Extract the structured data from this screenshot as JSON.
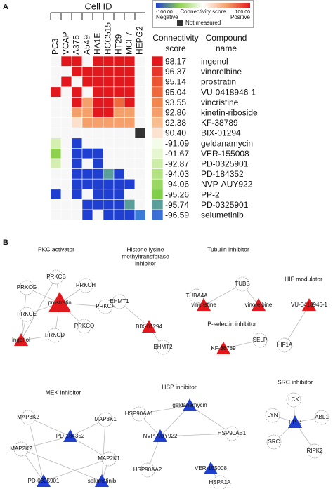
{
  "panel_a": {
    "label": "A",
    "cell_id_title": "Cell ID",
    "cell_lines": [
      "PC3",
      "VCAP",
      "A375",
      "A549",
      "HA1E",
      "HCC515",
      "HT29",
      "MCF7",
      "HEPG2"
    ],
    "legend": {
      "min": "-100.00",
      "title": "Connectivity score",
      "max": "100.00",
      "negative": "Negative",
      "positive": "Positive",
      "not_measured": "Not measured"
    },
    "score_header": [
      "Connectivity",
      "score"
    ],
    "name_header": [
      "Compound",
      "name"
    ],
    "rows": [
      {
        "score": "98.17",
        "name": "ingenol",
        "score_color": "#e3181d",
        "cells": [
          "#f7f7f7",
          "#e3181d",
          "#e3181d",
          "#f7f7f7",
          "#e3181d",
          "#e3181d",
          "#e3181d",
          "#e3181d",
          "#f7f7f7"
        ]
      },
      {
        "score": "96.37",
        "name": "vinorelbine",
        "score_color": "#e8372a",
        "cells": [
          "#f7f7f7",
          "#f7f7f7",
          "#e3181d",
          "#e3181d",
          "#e3181d",
          "#e3181d",
          "#e3181d",
          "#e3181d",
          "#f7f7f7"
        ]
      },
      {
        "score": "95.14",
        "name": "prostratin",
        "score_color": "#ec5532",
        "cells": [
          "#f7f7f7",
          "#e3181d",
          "#f7f7f7",
          "#e3181d",
          "#e3181d",
          "#e3181d",
          "#e3181d",
          "#e3181d",
          "#f7f7f7"
        ]
      },
      {
        "score": "95.04",
        "name": "VU-0418946-1",
        "score_color": "#ee6a3c",
        "cells": [
          "#e3181d",
          "#f7f7f7",
          "#e3181d",
          "#f7f7f7",
          "#e3181d",
          "#e3181d",
          "#e3181d",
          "#e3181d",
          "#f7f7f7"
        ]
      },
      {
        "score": "93.55",
        "name": "vincristine",
        "score_color": "#f2874e",
        "cells": [
          "#f7f7f7",
          "#f7f7f7",
          "#e3181d",
          "#f5a06a",
          "#e3181d",
          "#e3181d",
          "#ee6a3c",
          "#e3181d",
          "#f7f7f7"
        ]
      },
      {
        "score": "92.86",
        "name": "kinetin-riboside",
        "score_color": "#f5a06a",
        "cells": [
          "#f7f7f7",
          "#f7f7f7",
          "#f5a06a",
          "#f5a06a",
          "#e3181d",
          "#e3181d",
          "#f5a06a",
          "#f5a06a",
          "#f7f7f7"
        ]
      },
      {
        "score": "92.38",
        "name": "KF-38789",
        "score_color": "#f8bd8e",
        "cells": [
          "#f7f7f7",
          "#f7f7f7",
          "#fbe0cc",
          "#f5a06a",
          "#f5a06a",
          "#f5a06a",
          "#f5a06a",
          "#f5a06a",
          "#f7f7f7"
        ]
      },
      {
        "score": "90.40",
        "name": "BIX-01294",
        "score_color": "#fbe3cf",
        "cells": [
          "#f7f7f7",
          "#f7f7f7",
          "#f7f7f7",
          "#f7f7f7",
          "#f7f7f7",
          "#f7f7f7",
          "#f7f7f7",
          "#f7f7f7",
          "#333333"
        ]
      },
      {
        "score": "-91.09",
        "name": "geldanamycin",
        "score_color": "#f3fbe9",
        "cells": [
          "#d4efb0",
          "#f7f7f7",
          "#1f3fd1",
          "#f7f7f7",
          "#f7f7f7",
          "#f7f7f7",
          "#f7f7f7",
          "#f7f7f7",
          "#f7f7f7"
        ]
      },
      {
        "score": "-91.67",
        "name": "VER-155008",
        "score_color": "#e6f6d1",
        "cells": [
          "#8fd14f",
          "#f7f7f7",
          "#1f3fd1",
          "#1f3fd1",
          "#1f3fd1",
          "#f7f7f7",
          "#f7f7f7",
          "#f7f7f7",
          "#f7f7f7"
        ]
      },
      {
        "score": "-92.87",
        "name": "PD-0325901",
        "score_color": "#cdeca8",
        "cells": [
          "#d4efb0",
          "#f7f7f7",
          "#1f3fd1",
          "#f7f7f7",
          "#1f3fd1",
          "#f7f7f7",
          "#f7f7f7",
          "#f7f7f7",
          "#f7f7f7"
        ]
      },
      {
        "score": "-94.03",
        "name": "PD-184352",
        "score_color": "#b3e283",
        "cells": [
          "#f7f7f7",
          "#f7f7f7",
          "#1f3fd1",
          "#1f3fd1",
          "#1f3fd1",
          "#5a9e9a",
          "#1f3fd1",
          "#f7f7f7",
          "#f7f7f7"
        ]
      },
      {
        "score": "-94.06",
        "name": "NVP-AUY922",
        "score_color": "#98d862",
        "cells": [
          "#f7f7f7",
          "#f7f7f7",
          "#1f3fd1",
          "#1f3fd1",
          "#1f3fd1",
          "#1f3fd1",
          "#1f3fd1",
          "#1f3fd1",
          "#f7f7f7"
        ]
      },
      {
        "score": "-95.26",
        "name": "PP-2",
        "score_color": "#7fcf48",
        "cells": [
          "#1f3fd1",
          "#f7f7f7",
          "#1f3fd1",
          "#f7f7f7",
          "#1f3fd1",
          "#1f3fd1",
          "#1f3fd1",
          "#f7f7f7",
          "#f7f7f7"
        ]
      },
      {
        "score": "-95.74",
        "name": "PD-0325901",
        "score_color": "#5a9e9a",
        "cells": [
          "#f7f7f7",
          "#f7f7f7",
          "#f7f7f7",
          "#1f3fd1",
          "#1f3fd1",
          "#1f3fd1",
          "#1f3fd1",
          "#5a9e9a",
          "#f7f7f7"
        ]
      },
      {
        "score": "-96.59",
        "name": "selumetinib",
        "score_color": "#3a6fd5",
        "cells": [
          "#f7f7f7",
          "#f7f7f7",
          "#f7f7f7",
          "#1f3fd1",
          "#f7f7f7",
          "#1f3fd1",
          "#1f3fd1",
          "#1f3fd1",
          "#3a7bd5"
        ]
      }
    ]
  },
  "panel_b": {
    "label": "B",
    "groups": [
      {
        "title": [
          "PKC activator"
        ],
        "nodes": [
          {
            "label": "PRKCB",
            "kind": "gene"
          },
          {
            "label": "PRKCG",
            "kind": "gene"
          },
          {
            "label": "PRKCH",
            "kind": "gene"
          },
          {
            "label": "PRKCA",
            "kind": "gene"
          },
          {
            "label": "prostratin",
            "kind": "up"
          },
          {
            "label": "PRKCE",
            "kind": "gene"
          },
          {
            "label": "PRKCD",
            "kind": "gene"
          },
          {
            "label": "PRKCQ",
            "kind": "gene"
          },
          {
            "label": "ingenol",
            "kind": "up"
          }
        ]
      },
      {
        "title": [
          "Histone lysine",
          "methyltransferase",
          "inhibitor"
        ],
        "nodes": [
          {
            "label": "EHMT1",
            "kind": "gene"
          },
          {
            "label": "BIX-01294",
            "kind": "up"
          },
          {
            "label": "EHMT2",
            "kind": "gene"
          }
        ]
      },
      {
        "title": [
          "Tubulin inhibitor"
        ],
        "nodes": [
          {
            "label": "TUBB",
            "kind": "gene"
          },
          {
            "label": "TUBA4A",
            "kind": "gene"
          },
          {
            "label": "vincristine",
            "kind": "up"
          },
          {
            "label": "vinorelbine",
            "kind": "up"
          }
        ]
      },
      {
        "title": [
          "HIF modulator"
        ],
        "nodes": [
          {
            "label": "VU-0418946-1",
            "kind": "up"
          },
          {
            "label": "HIF1A",
            "kind": "gene"
          }
        ]
      },
      {
        "title": [
          "P-selectin inhibitor"
        ],
        "nodes": [
          {
            "label": "SELP",
            "kind": "gene"
          },
          {
            "label": "KF-38789",
            "kind": "up"
          }
        ]
      },
      {
        "title": [
          "MEK inhibitor"
        ],
        "nodes": [
          {
            "label": "MAP3K2",
            "kind": "gene"
          },
          {
            "label": "MAP3K1",
            "kind": "gene"
          },
          {
            "label": "PD-184352",
            "kind": "down"
          },
          {
            "label": "MAP2K2",
            "kind": "gene"
          },
          {
            "label": "MAP2K1",
            "kind": "gene"
          },
          {
            "label": "PD-0325901",
            "kind": "down"
          },
          {
            "label": "selumetinib",
            "kind": "down"
          }
        ]
      },
      {
        "title": [
          "HSP inhibitor"
        ],
        "nodes": [
          {
            "label": "geldanamycin",
            "kind": "down"
          },
          {
            "label": "HSP90AA1",
            "kind": "gene"
          },
          {
            "label": "NVP-AUY922",
            "kind": "down"
          },
          {
            "label": "HSP90AB1",
            "kind": "gene"
          },
          {
            "label": "VER-155008",
            "kind": "down"
          },
          {
            "label": "HSP90AA2",
            "kind": "gene"
          },
          {
            "label": "HSPA1A",
            "kind": "gene"
          }
        ]
      },
      {
        "title": [
          "SRC inhibitor"
        ],
        "nodes": [
          {
            "label": "LCK",
            "kind": "gene"
          },
          {
            "label": "LYN",
            "kind": "gene"
          },
          {
            "label": "ABL1",
            "kind": "gene"
          },
          {
            "label": "PP-2",
            "kind": "down"
          },
          {
            "label": "SRC",
            "kind": "gene"
          },
          {
            "label": "RIPK2",
            "kind": "gene"
          }
        ]
      }
    ]
  }
}
